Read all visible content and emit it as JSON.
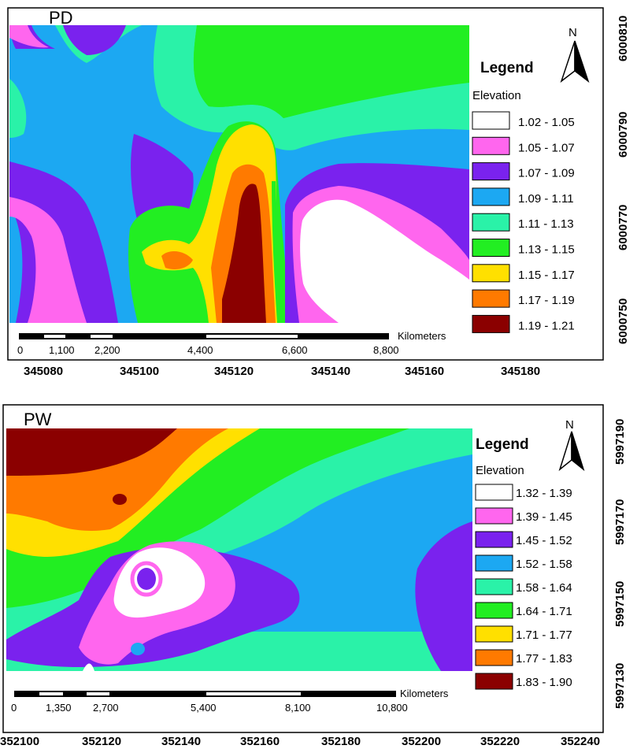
{
  "maps": [
    {
      "panel_label": "PD",
      "legend": {
        "title": "Legend",
        "subtitle": "Elevation",
        "items": [
          {
            "label": "1.02 - 1.05",
            "color": "#ffffff"
          },
          {
            "label": "1.05 - 1.07",
            "color": "#ff66ee"
          },
          {
            "label": "1.07 - 1.09",
            "color": "#7a22ee"
          },
          {
            "label": "1.09 - 1.11",
            "color": "#1ca8f2"
          },
          {
            "label": "1.11 - 1.13",
            "color": "#2af2a8"
          },
          {
            "label": "1.13 - 1.15",
            "color": "#22ee22"
          },
          {
            "label": "1.15 - 1.17",
            "color": "#ffe000"
          },
          {
            "label": "1.17 - 1.19",
            "color": "#ff7a00"
          },
          {
            "label": "1.19 - 1.21",
            "color": "#8b0000"
          }
        ]
      },
      "north_label": "N",
      "scale_bar": {
        "unit_label": "Kilometers",
        "labels": [
          "0",
          "1,100",
          "2,200",
          "4,400",
          "6,600",
          "8,800"
        ]
      },
      "x_ticks": [
        "345080",
        "345100",
        "345120",
        "345140",
        "345160",
        "345180"
      ],
      "y_ticks": [
        "6000810",
        "6000790",
        "6000770",
        "6000750"
      ]
    },
    {
      "panel_label": "PW",
      "legend": {
        "title": "Legend",
        "subtitle": "Elevation",
        "items": [
          {
            "label": "1.32 - 1.39",
            "color": "#ffffff"
          },
          {
            "label": "1.39 - 1.45",
            "color": "#ff66ee"
          },
          {
            "label": "1.45 - 1.52",
            "color": "#7a22ee"
          },
          {
            "label": "1.52 - 1.58",
            "color": "#1ca8f2"
          },
          {
            "label": "1.58 - 1.64",
            "color": "#2af2a8"
          },
          {
            "label": "1.64 - 1.71",
            "color": "#22ee22"
          },
          {
            "label": "1.71 - 1.77",
            "color": "#ffe000"
          },
          {
            "label": "1.77 - 1.83",
            "color": "#ff7a00"
          },
          {
            "label": "1.83 - 1.90",
            "color": "#8b0000"
          }
        ]
      },
      "north_label": "N",
      "scale_bar": {
        "unit_label": "Kilometers",
        "labels": [
          "0",
          "1,350",
          "2,700",
          "5,400",
          "8,100",
          "10,800"
        ]
      },
      "x_ticks": [
        "352100",
        "352120",
        "352140",
        "352160",
        "352180",
        "352200",
        "352220",
        "352240"
      ],
      "y_ticks": [
        "5997190",
        "5997170",
        "5997150",
        "5997130"
      ]
    }
  ]
}
